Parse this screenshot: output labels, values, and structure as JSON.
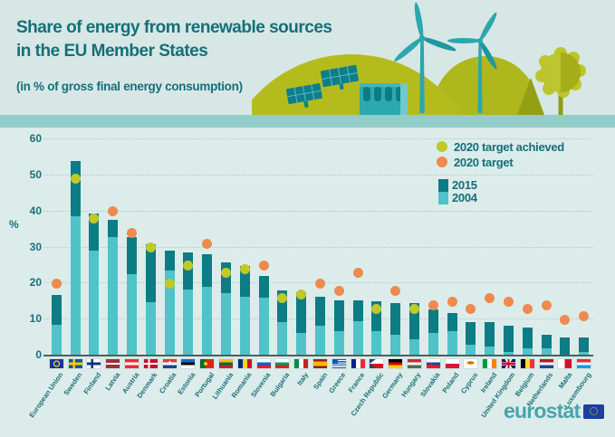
{
  "header": {
    "title_line1": "Share of energy from renewable sources",
    "title_line2": "in the EU Member States",
    "subtitle": "(in % of gross final energy consumption)"
  },
  "legend": {
    "target_achieved": "2020 target achieved",
    "target": "2020 target",
    "year_2015": "2015",
    "year_2004": "2004"
  },
  "axis": {
    "unit": "%"
  },
  "footer": {
    "brand": "eurostat"
  },
  "colors": {
    "bar_2015": "#0d7c84",
    "bar_2004": "#4fc3c7",
    "target_achieved": "#bfc928",
    "target": "#ee8a4e",
    "text_teal": "#156f79",
    "grid": "#a9cfcb",
    "axis": "#4e5f5f"
  },
  "chart_data": {
    "type": "bar",
    "title": "Share of energy from renewable sources in the EU Member States",
    "subtitle": "(in % of gross final energy consumption)",
    "ylabel": "%",
    "ylim": [
      0,
      60
    ],
    "yticks": [
      0,
      10,
      20,
      30,
      40,
      50,
      60
    ],
    "grid": "horizontal-dotted",
    "legend_position": "top-right",
    "legend_entries": [
      "2020 target achieved",
      "2020 target",
      "2015",
      "2004"
    ],
    "categories": [
      "European Union",
      "Sweden",
      "Finland",
      "Latvia",
      "Austria",
      "Denmark",
      "Croatia",
      "Estonia",
      "Portugal",
      "Lithuania",
      "Romania",
      "Slovenia",
      "Bulgaria",
      "Italy",
      "Spain",
      "Greece",
      "France",
      "Czech Republic",
      "Germany",
      "Hungary",
      "Slovakia",
      "Poland",
      "Cyprus",
      "Ireland",
      "United Kingdom",
      "Belgium",
      "Netherlands",
      "Malta",
      "Luxembourg"
    ],
    "flags": [
      "eu",
      "se",
      "fi",
      "lv",
      "at",
      "dk",
      "hr",
      "ee",
      "pt",
      "lt",
      "ro",
      "si",
      "bg",
      "it",
      "es",
      "gr",
      "fr",
      "cz",
      "de",
      "hu",
      "sk",
      "pl",
      "cy",
      "ie",
      "gb",
      "be",
      "nl",
      "mt",
      "lu"
    ],
    "series": [
      {
        "name": "2015",
        "values": [
          16.7,
          53.9,
          39.3,
          37.6,
          33.0,
          30.8,
          29.0,
          28.6,
          28.0,
          25.8,
          24.8,
          22.0,
          18.2,
          17.5,
          16.2,
          15.4,
          15.2,
          15.1,
          14.6,
          14.5,
          12.9,
          11.8,
          9.4,
          9.2,
          8.2,
          7.9,
          5.8,
          5.0,
          5.0
        ]
      },
      {
        "name": "2004",
        "values": [
          8.5,
          38.7,
          29.2,
          32.8,
          22.6,
          14.9,
          23.5,
          18.4,
          19.2,
          17.2,
          16.3,
          16.1,
          9.4,
          6.3,
          8.4,
          6.9,
          9.5,
          6.8,
          5.8,
          4.4,
          6.4,
          6.9,
          3.1,
          2.4,
          1.1,
          1.9,
          2.0,
          0.1,
          0.9
        ]
      },
      {
        "name": "2020 target",
        "values": [
          20,
          49,
          38,
          40,
          34,
          30,
          20,
          25,
          31,
          23,
          24,
          25,
          16,
          17,
          20,
          18,
          23,
          13,
          18,
          13,
          14,
          15,
          13,
          16,
          15,
          13,
          14,
          10,
          11
        ],
        "achieved": [
          false,
          true,
          true,
          false,
          false,
          true,
          true,
          true,
          false,
          true,
          true,
          false,
          true,
          true,
          false,
          false,
          false,
          true,
          false,
          true,
          false,
          false,
          false,
          false,
          false,
          false,
          false,
          false,
          false
        ]
      }
    ]
  }
}
